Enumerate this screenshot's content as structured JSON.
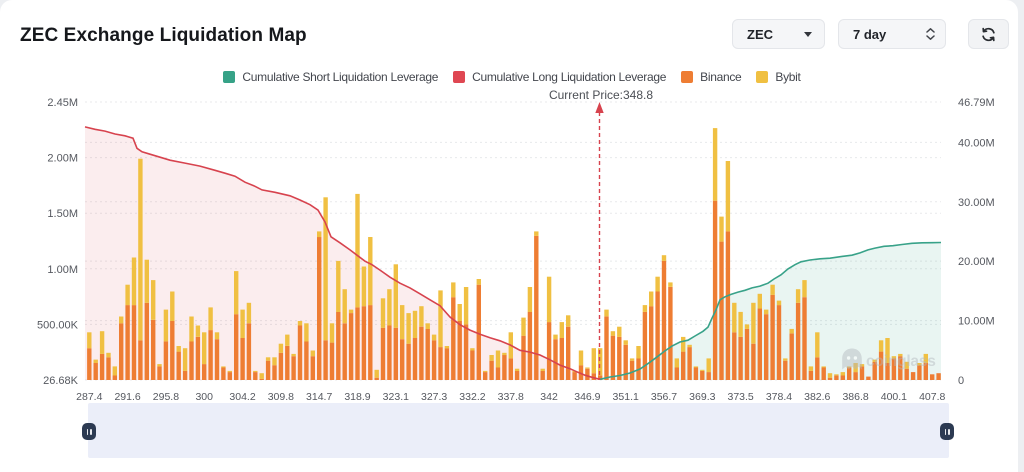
{
  "header": {
    "title": "ZEC Exchange Liquidation Map",
    "coin_select": "ZEC",
    "timeframe_value": "7 day",
    "refresh_icon": "refresh-icon"
  },
  "legend": [
    {
      "label": "Cumulative Short Liquidation Leverage",
      "color": "#36a287"
    },
    {
      "label": "Cumulative Long Liquidation Leverage",
      "color": "#df4752"
    },
    {
      "label": "Binance",
      "color": "#ee7d33"
    },
    {
      "label": "Bybit",
      "color": "#f0c042"
    }
  ],
  "annotation": {
    "current_price_label": "Current Price:348.8",
    "current_price": 348.8,
    "line_color": "#d7434e"
  },
  "watermark": {
    "text": "coinglass",
    "icon": "ghost-icon"
  },
  "colors": {
    "binance": "#ee7d33",
    "bybit": "#f0c042",
    "long_line": "#d7434e",
    "long_fill": "rgba(215,67,78,0.095)",
    "short_line": "#38a289",
    "short_fill": "rgba(56,162,137,0.11)",
    "grid": "#e8e9eb",
    "axis_text": "#55585f",
    "slider_band": "#ebeef9",
    "slider_handle": "#2c3a52"
  },
  "chart_data": {
    "type": "bar",
    "title": "ZEC Exchange Liquidation Map",
    "left_axis": {
      "ticks": [
        "2.45M",
        "2.00M",
        "1.50M",
        "1.00M",
        "500.00K",
        "26.68K"
      ],
      "min": 0.02668,
      "max": 2.45,
      "unit": "M"
    },
    "right_axis": {
      "ticks": [
        "46.79M",
        "40.00M",
        "30.00M",
        "20.00M",
        "10.00M",
        "0"
      ],
      "min": 0,
      "max": 46.79,
      "unit": "M"
    },
    "x_ticks": [
      "287.4",
      "291.6",
      "295.8",
      "300",
      "304.2",
      "309.8",
      "314.7",
      "318.9",
      "323.1",
      "327.3",
      "332.2",
      "337.8",
      "342",
      "346.9",
      "351.1",
      "356.7",
      "369.3",
      "373.5",
      "378.4",
      "382.6",
      "386.8",
      "400.1",
      "407.8"
    ],
    "x_tick_interval_bars": 6,
    "grid_on": true,
    "legend_position": "top",
    "series": [
      {
        "name": "Binance",
        "type": "bar",
        "stack": "liq",
        "color": "#ee7d33"
      },
      {
        "name": "Bybit",
        "type": "bar",
        "stack": "liq",
        "color": "#f0c042"
      },
      {
        "name": "Cumulative Long Liquidation Leverage",
        "type": "line",
        "axis": "right",
        "color": "#d7434e"
      },
      {
        "name": "Cumulative Short Liquidation Leverage",
        "type": "line",
        "axis": "right",
        "color": "#38a289"
      }
    ],
    "bar_total_M": [
      0.42,
      0.18,
      0.43,
      0.24,
      0.12,
      0.56,
      0.84,
      1.08,
      1.95,
      1.06,
      0.88,
      0.14,
      0.62,
      0.78,
      0.3,
      0.28,
      0.56,
      0.48,
      0.42,
      0.64,
      0.42,
      0.12,
      0.08,
      0.96,
      0.62,
      0.68,
      0.08,
      0.06,
      0.2,
      0.2,
      0.32,
      0.4,
      0.23,
      0.52,
      0.5,
      0.26,
      1.31,
      1.61,
      0.5,
      1.05,
      0.8,
      0.62,
      1.64,
      1.0,
      1.26,
      0.09,
      0.72,
      0.8,
      1.02,
      0.66,
      0.59,
      0.61,
      0.65,
      0.5,
      0.4,
      0.79,
      0.3,
      0.86,
      0.67,
      0.82,
      0.28,
      0.89,
      0.08,
      0.22,
      0.26,
      0.24,
      0.42,
      0.1,
      0.55,
      0.82,
      1.31,
      0.1,
      0.91,
      0.4,
      0.51,
      0.57,
      0.08,
      0.26,
      0.11,
      0.28,
      0.28,
      0.62,
      0.43,
      0.47,
      0.35,
      0.19,
      0.3,
      0.66,
      0.78,
      0.91,
      1.1,
      0.86,
      0.19,
      0.38,
      0.31,
      0.12,
      0.09,
      0.19,
      2.22,
      1.44,
      1.93,
      0.68,
      0.6,
      0.49,
      0.68,
      0.76,
      0.62,
      0.84,
      0.7,
      0.19,
      0.45,
      0.8,
      0.88,
      0.12,
      0.42,
      0.12,
      0.06,
      0.05,
      0.07,
      0.12,
      0.15,
      0.14,
      0.03,
      0.18,
      0.35,
      0.37,
      0.21,
      0.23,
      0.16,
      0.07,
      0.15,
      0.23,
      0.05,
      0.06
    ],
    "bar_bybit_M": [
      0.14,
      0.03,
      0.2,
      0.04,
      0.08,
      0.06,
      0.18,
      0.42,
      1.6,
      0.38,
      0.35,
      0.02,
      0.28,
      0.26,
      0.05,
      0.2,
      0.22,
      0.1,
      0.28,
      0.2,
      0.06,
      0.01,
      0.01,
      0.38,
      0.25,
      0.18,
      0.01,
      0.05,
      0.03,
      0.07,
      0.08,
      0.1,
      0.02,
      0.04,
      0.16,
      0.05,
      0.05,
      1.26,
      0.17,
      0.45,
      0.3,
      0.03,
      1.0,
      0.35,
      0.6,
      0.07,
      0.26,
      0.32,
      0.56,
      0.3,
      0.27,
      0.24,
      0.18,
      0.05,
      0.05,
      0.5,
      0.02,
      0.13,
      0.15,
      0.33,
      0.02,
      0.05,
      0.01,
      0.05,
      0.15,
      0.02,
      0.23,
      0.02,
      0.16,
      0.22,
      0.04,
      0.02,
      0.4,
      0.04,
      0.14,
      0.1,
      0.01,
      0.13,
      0.01,
      0.22,
      0.24,
      0.06,
      0.04,
      0.09,
      0.04,
      0.02,
      0.11,
      0.06,
      0.13,
      0.13,
      0.05,
      0.04,
      0.08,
      0.13,
      0.02,
      0.01,
      0.01,
      0.12,
      0.64,
      0.22,
      0.62,
      0.26,
      0.22,
      0.04,
      0.36,
      0.13,
      0.04,
      0.09,
      0.04,
      0.02,
      0.04,
      0.12,
      0.15,
      0.04,
      0.22,
      0.01,
      0.04,
      0.01,
      0.03,
      0.01,
      0.08,
      0.02,
      0.0,
      0.02,
      0.1,
      0.22,
      0.02,
      0.02,
      0.06,
      0.0,
      0.02,
      0.08,
      0.0,
      0.0
    ],
    "long_line_points": [
      [
        85,
        42.6
      ],
      [
        95,
        42.2
      ],
      [
        105,
        41.9
      ],
      [
        115,
        41.4
      ],
      [
        125,
        41.1
      ],
      [
        133,
        40.7
      ],
      [
        137,
        39.0
      ],
      [
        142,
        38.4
      ],
      [
        150,
        38.0
      ],
      [
        160,
        37.5
      ],
      [
        170,
        37.0
      ],
      [
        185,
        36.5
      ],
      [
        200,
        36.0
      ],
      [
        215,
        35.3
      ],
      [
        225,
        34.8
      ],
      [
        235,
        34.3
      ],
      [
        245,
        33.3
      ],
      [
        255,
        32.6
      ],
      [
        262,
        32.0
      ],
      [
        275,
        31.6
      ],
      [
        290,
        31.0
      ],
      [
        300,
        30.3
      ],
      [
        310,
        29.5
      ],
      [
        318,
        28.6
      ],
      [
        325,
        26.6
      ],
      [
        331,
        24.1
      ],
      [
        340,
        23.1
      ],
      [
        350,
        21.9
      ],
      [
        357,
        21.0
      ],
      [
        365,
        20.0
      ],
      [
        372,
        19.4
      ],
      [
        380,
        18.5
      ],
      [
        390,
        17.3
      ],
      [
        400,
        16.3
      ],
      [
        410,
        15.5
      ],
      [
        420,
        14.5
      ],
      [
        430,
        13.5
      ],
      [
        440,
        12.5
      ],
      [
        450,
        10.6
      ],
      [
        460,
        9.3
      ],
      [
        470,
        8.4
      ],
      [
        480,
        7.7
      ],
      [
        490,
        7.1
      ],
      [
        500,
        6.6
      ],
      [
        510,
        5.9
      ],
      [
        520,
        5.0
      ],
      [
        530,
        4.7
      ],
      [
        540,
        4.2
      ],
      [
        550,
        3.4
      ],
      [
        560,
        2.5
      ],
      [
        570,
        1.9
      ],
      [
        578,
        1.3
      ],
      [
        585,
        0.8
      ],
      [
        592,
        0.45
      ],
      [
        598,
        0.2
      ],
      [
        600,
        0.12
      ]
    ],
    "short_line_points": [
      [
        600,
        0.12
      ],
      [
        610,
        0.5
      ],
      [
        620,
        0.76
      ],
      [
        630,
        1.18
      ],
      [
        640,
        1.85
      ],
      [
        650,
        3.0
      ],
      [
        658,
        4.0
      ],
      [
        665,
        4.9
      ],
      [
        672,
        5.7
      ],
      [
        680,
        6.4
      ],
      [
        688,
        6.7
      ],
      [
        695,
        7.4
      ],
      [
        703,
        8.2
      ],
      [
        708,
        8.9
      ],
      [
        712,
        10.4
      ],
      [
        716,
        11.8
      ],
      [
        720,
        13.5
      ],
      [
        725,
        14.0
      ],
      [
        731,
        14.4
      ],
      [
        738,
        14.8
      ],
      [
        745,
        15.1
      ],
      [
        752,
        15.5
      ],
      [
        760,
        15.8
      ],
      [
        768,
        16.3
      ],
      [
        774,
        17.0
      ],
      [
        781,
        17.7
      ],
      [
        788,
        18.7
      ],
      [
        795,
        19.4
      ],
      [
        801,
        19.9
      ],
      [
        810,
        20.2
      ],
      [
        820,
        20.4
      ],
      [
        830,
        20.5
      ],
      [
        842,
        20.8
      ],
      [
        852,
        21.0
      ],
      [
        860,
        21.4
      ],
      [
        868,
        21.9
      ],
      [
        875,
        22.2
      ],
      [
        884,
        22.5
      ],
      [
        893,
        22.6
      ],
      [
        902,
        22.8
      ],
      [
        912,
        23.0
      ],
      [
        922,
        23.1
      ],
      [
        932,
        23.11
      ],
      [
        941,
        23.14
      ]
    ]
  }
}
